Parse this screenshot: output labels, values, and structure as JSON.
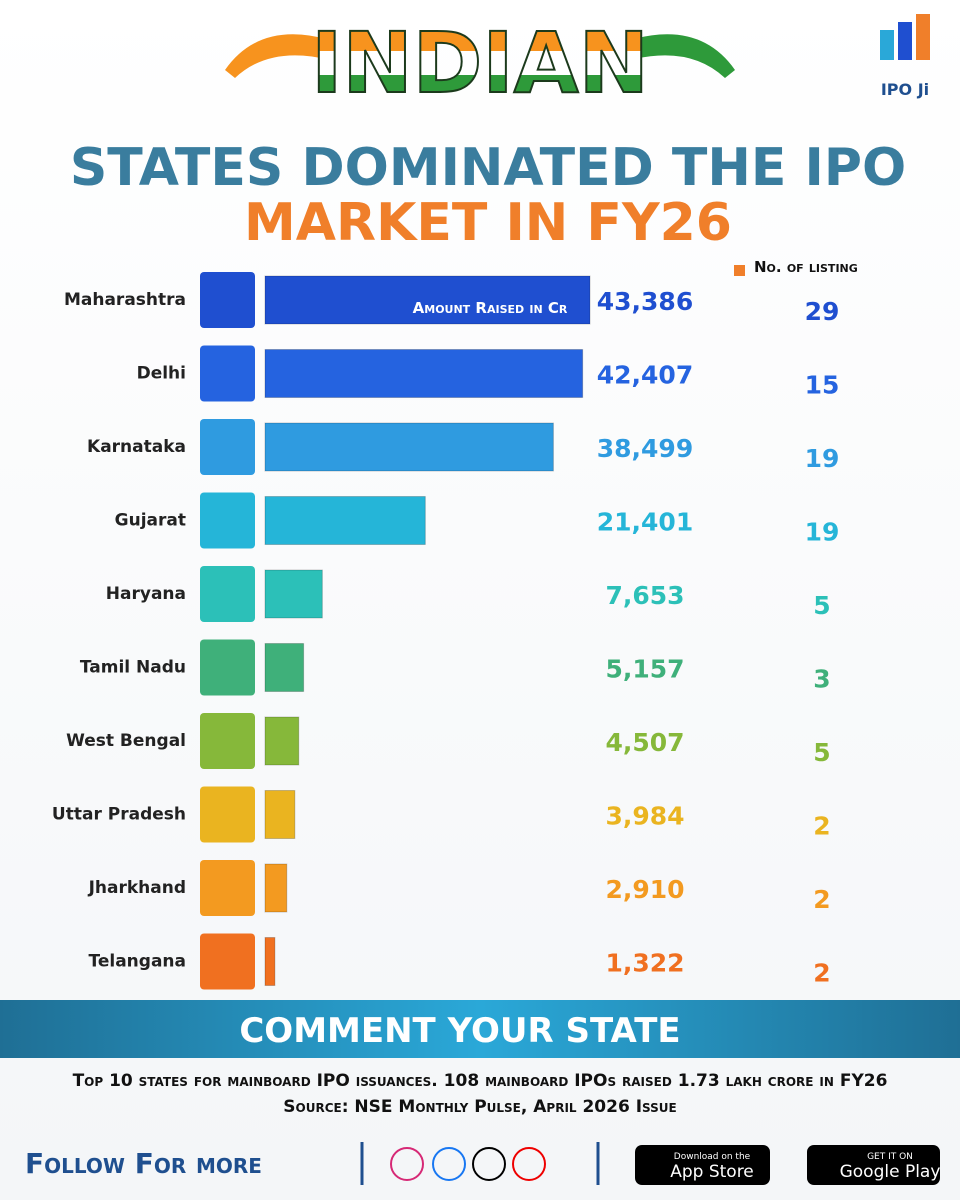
{
  "brand": "IPO Ji",
  "chart_data": {
    "type": "hbar",
    "title_lines": [
      "INDIAN",
      "STATES DOMINATED THE IPO",
      "MARKET IN FY26"
    ],
    "categories": [
      "Maharashtra",
      "Delhi",
      "Karnataka",
      "Gujarat",
      "Haryana",
      "Tamil Nadu",
      "West Bengal",
      "Uttar Pradesh",
      "Jharkhand",
      "Telangana"
    ],
    "colors": [
      "#1f4fd0",
      "#2563e0",
      "#2f9be0",
      "#25b5d8",
      "#2cc0b8",
      "#3fb07a",
      "#86b83a",
      "#eab420",
      "#f39a20",
      "#f07020"
    ],
    "series": [
      {
        "name": "Amount Raised in Cr",
        "values": [
          43386,
          42407,
          38499,
          21401,
          7653,
          5157,
          4507,
          3984,
          2910,
          1322
        ],
        "value_labels": [
          "43,386",
          "42,407",
          "38,499",
          "21,401",
          "7,653",
          "5,157",
          "4,507",
          "3,984",
          "2,910",
          "1,322"
        ]
      },
      {
        "name": "No. of listing",
        "color": "#f07f2a",
        "values": [
          29,
          15,
          19,
          19,
          5,
          3,
          5,
          2,
          2,
          2
        ]
      }
    ]
  },
  "banner": "COMMENT YOUR STATE",
  "footnote": "Top 10 states for mainboard IPO issuances. 108 mainboard IPOs raised 1.73 lakh crore in FY26 Source: NSE Monthly Pulse, April 2026 Issue",
  "follow": "Follow For more",
  "app_store": {
    "small": "Download on the",
    "big": "App Store"
  },
  "google_play": {
    "small": "GET IT ON",
    "big": "Google Play"
  }
}
